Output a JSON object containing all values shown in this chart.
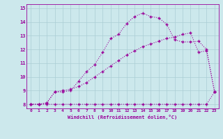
{
  "background_color": "#cce8ec",
  "grid_color": "#aacdd4",
  "line_color": "#990099",
  "xlabel": "Windchill (Refroidissement éolien,°C)",
  "xlim": [
    -0.5,
    23.5
  ],
  "ylim": [
    7.7,
    15.3
  ],
  "yticks": [
    8,
    9,
    10,
    11,
    12,
    13,
    14,
    15
  ],
  "xticks": [
    0,
    1,
    2,
    3,
    4,
    5,
    6,
    7,
    8,
    9,
    10,
    11,
    12,
    13,
    14,
    15,
    16,
    17,
    18,
    19,
    20,
    21,
    22,
    23
  ],
  "line1_x": [
    0,
    1,
    2,
    3,
    4,
    5,
    6,
    7,
    8,
    9,
    10,
    11,
    12,
    13,
    14,
    15,
    16,
    17,
    18,
    19,
    20,
    21,
    22,
    23
  ],
  "line1_y": [
    8.0,
    8.0,
    8.0,
    8.0,
    8.0,
    8.0,
    8.0,
    8.0,
    8.0,
    8.0,
    8.0,
    8.0,
    8.0,
    8.0,
    8.0,
    8.0,
    8.0,
    8.0,
    8.0,
    8.0,
    8.0,
    8.0,
    8.0,
    8.9
  ],
  "line2_x": [
    0,
    1,
    2,
    3,
    4,
    5,
    6,
    7,
    8,
    9,
    10,
    11,
    12,
    13,
    14,
    15,
    16,
    17,
    18,
    19,
    20,
    21,
    22,
    23
  ],
  "line2_y": [
    8.0,
    8.0,
    8.1,
    8.9,
    9.0,
    9.1,
    9.3,
    9.6,
    10.0,
    10.4,
    10.8,
    11.2,
    11.6,
    11.9,
    12.2,
    12.4,
    12.6,
    12.8,
    12.9,
    13.1,
    13.2,
    11.8,
    11.9,
    8.9
  ],
  "line3_x": [
    0,
    1,
    2,
    3,
    4,
    5,
    6,
    7,
    8,
    9,
    10,
    11,
    12,
    13,
    14,
    15,
    16,
    17,
    18,
    19,
    20,
    21,
    22,
    23
  ],
  "line3_y": [
    8.0,
    8.0,
    8.1,
    8.9,
    8.9,
    9.0,
    9.7,
    10.4,
    10.9,
    11.8,
    12.8,
    13.1,
    13.9,
    14.4,
    14.65,
    14.4,
    14.3,
    13.85,
    12.7,
    12.55,
    12.55,
    12.6,
    12.0,
    8.9
  ],
  "marker_size": 3.5,
  "marker_style": "+",
  "line_width": 0.8
}
